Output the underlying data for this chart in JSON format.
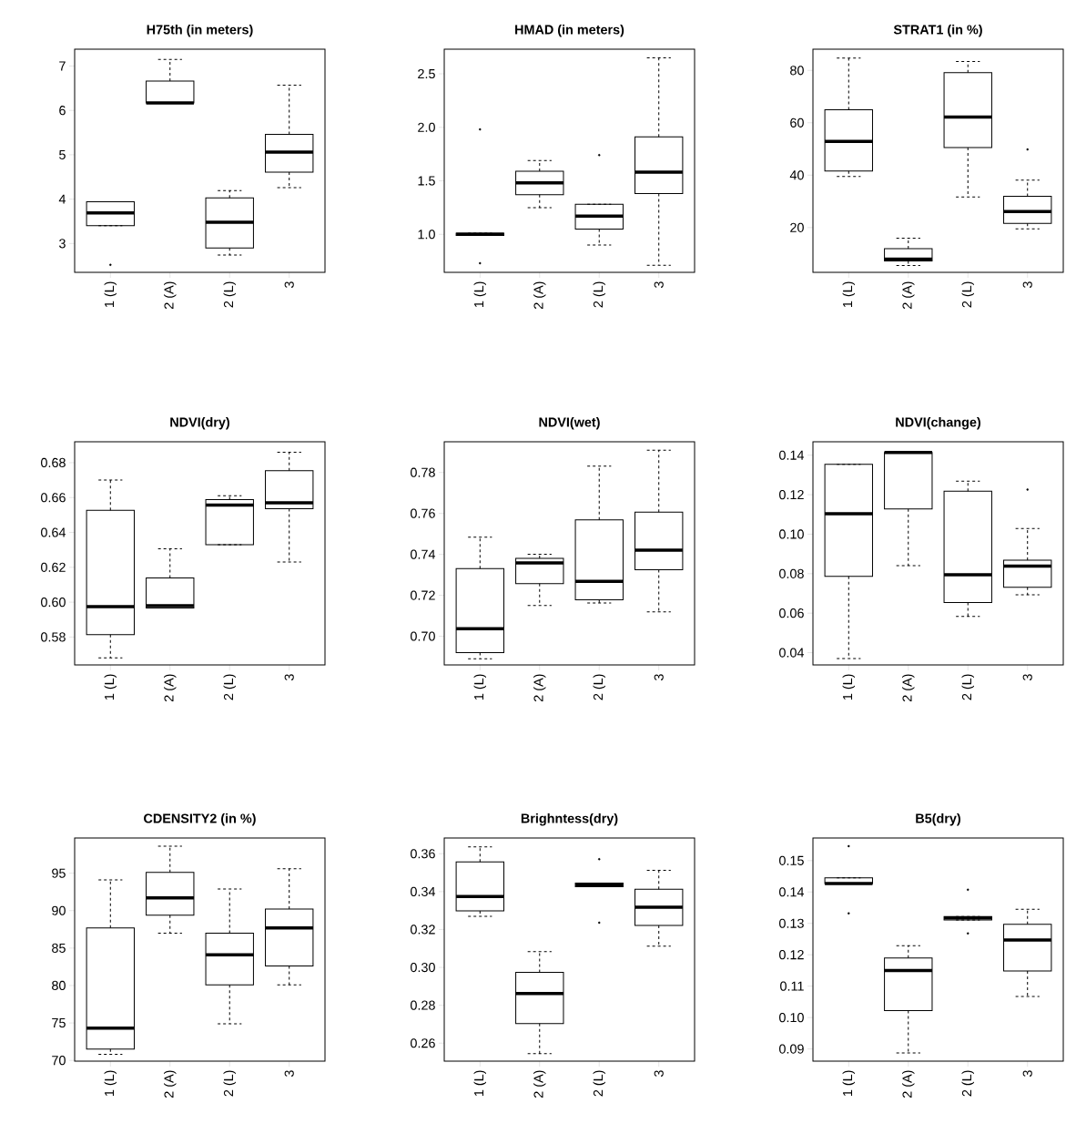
{
  "chart_data": [
    {
      "type": "box",
      "title": "H75th (in meters)",
      "categories": [
        "1 (L)",
        "2 (A)",
        "2 (L)",
        "3"
      ],
      "ylim": [
        2.35,
        7.38
      ],
      "yticks": [
        3,
        4,
        5,
        6,
        7
      ],
      "boxes": [
        {
          "low": 3.4,
          "q1": 3.4,
          "median": 3.69,
          "q3": 3.94,
          "high": 3.94,
          "outliers": [
            2.52
          ]
        },
        {
          "low": 6.17,
          "q1": 6.17,
          "median": 6.17,
          "q3": 6.66,
          "high": 7.15
        },
        {
          "low": 2.74,
          "q1": 2.9,
          "median": 3.48,
          "q3": 4.03,
          "high": 4.19
        },
        {
          "low": 4.26,
          "q1": 4.61,
          "median": 5.06,
          "q3": 5.46,
          "high": 6.57
        }
      ]
    },
    {
      "type": "box",
      "title": "HMAD (in meters)",
      "categories": [
        "1 (L)",
        "2 (A)",
        "2 (L)",
        "3"
      ],
      "ylim": [
        0.645,
        2.73
      ],
      "yticks": [
        {
          "value": 1.0,
          "label": "1.0"
        },
        {
          "value": 1.5,
          "label": "1.5"
        },
        {
          "value": 2.0,
          "label": "2.0"
        },
        {
          "value": 2.5,
          "label": "2.5"
        }
      ],
      "boxes": [
        {
          "low": 0.99,
          "q1": 0.99,
          "median": 1.0,
          "q3": 1.01,
          "high": 1.01,
          "outliers": [
            1.98,
            0.73
          ]
        },
        {
          "low": 1.25,
          "q1": 1.37,
          "median": 1.48,
          "q3": 1.59,
          "high": 1.69
        },
        {
          "low": 0.9,
          "q1": 1.05,
          "median": 1.17,
          "q3": 1.28,
          "high": 1.28,
          "outliers": [
            1.74
          ]
        },
        {
          "low": 0.71,
          "q1": 1.38,
          "median": 1.58,
          "q3": 1.91,
          "high": 2.65
        }
      ]
    },
    {
      "type": "box",
      "title": "STRAT1 (in %)",
      "categories": [
        "1 (L)",
        "2 (A)",
        "2 (L)",
        "3"
      ],
      "ylim": [
        2.9,
        88.1
      ],
      "yticks": [
        20,
        40,
        60,
        80
      ],
      "boxes": [
        {
          "low": 39.5,
          "q1": 41.6,
          "median": 52.9,
          "q3": 65.0,
          "high": 84.7
        },
        {
          "low": 5.5,
          "q1": 7.2,
          "median": 7.9,
          "q3": 11.9,
          "high": 15.9
        },
        {
          "low": 31.7,
          "q1": 50.5,
          "median": 62.2,
          "q3": 79.1,
          "high": 83.4
        },
        {
          "low": 19.5,
          "q1": 21.6,
          "median": 26.1,
          "q3": 31.9,
          "high": 38.1,
          "outliers": [
            49.8
          ]
        }
      ]
    },
    {
      "type": "box",
      "title": "NDVI(dry)",
      "categories": [
        "1 (L)",
        "2 (A)",
        "2 (L)",
        "3"
      ],
      "ylim": [
        0.564,
        0.692
      ],
      "yticks": [
        {
          "value": 0.58,
          "label": "0.58"
        },
        {
          "value": 0.6,
          "label": "0.60"
        },
        {
          "value": 0.62,
          "label": "0.62"
        },
        {
          "value": 0.64,
          "label": "0.64"
        },
        {
          "value": 0.66,
          "label": "0.66"
        },
        {
          "value": 0.68,
          "label": "0.68"
        }
      ],
      "boxes": [
        {
          "low": 0.568,
          "q1": 0.5814,
          "median": 0.5974,
          "q3": 0.6527,
          "high": 0.6701
        },
        {
          "low": 0.5967,
          "q1": 0.5967,
          "median": 0.598,
          "q3": 0.6139,
          "high": 0.6306
        },
        {
          "low": 0.633,
          "q1": 0.633,
          "median": 0.6557,
          "q3": 0.6588,
          "high": 0.661
        },
        {
          "low": 0.623,
          "q1": 0.6536,
          "median": 0.657,
          "q3": 0.6754,
          "high": 0.686
        }
      ]
    },
    {
      "type": "box",
      "title": "NDVI(wet)",
      "categories": [
        "1 (L)",
        "2 (A)",
        "2 (L)",
        "3"
      ],
      "ylim": [
        0.686,
        0.795
      ],
      "yticks": [
        {
          "value": 0.7,
          "label": "0.70"
        },
        {
          "value": 0.72,
          "label": "0.72"
        },
        {
          "value": 0.74,
          "label": "0.74"
        },
        {
          "value": 0.76,
          "label": "0.76"
        },
        {
          "value": 0.78,
          "label": "0.78"
        }
      ],
      "boxes": [
        {
          "low": 0.689,
          "q1": 0.692,
          "median": 0.7037,
          "q3": 0.733,
          "high": 0.7484
        },
        {
          "low": 0.715,
          "q1": 0.7257,
          "median": 0.7358,
          "q3": 0.738,
          "high": 0.74
        },
        {
          "low": 0.7163,
          "q1": 0.7178,
          "median": 0.7268,
          "q3": 0.7569,
          "high": 0.7831
        },
        {
          "low": 0.7119,
          "q1": 0.7325,
          "median": 0.742,
          "q3": 0.7606,
          "high": 0.7909
        }
      ]
    },
    {
      "type": "box",
      "title": "NDVI(change)",
      "categories": [
        "1 (L)",
        "2 (A)",
        "2 (L)",
        "3"
      ],
      "ylim": [
        0.0338,
        0.1468
      ],
      "yticks": [
        {
          "value": 0.04,
          "label": "0.04"
        },
        {
          "value": 0.06,
          "label": "0.06"
        },
        {
          "value": 0.08,
          "label": "0.08"
        },
        {
          "value": 0.1,
          "label": "0.10"
        },
        {
          "value": 0.12,
          "label": "0.12"
        },
        {
          "value": 0.14,
          "label": "0.14"
        }
      ],
      "boxes": [
        {
          "low": 0.037,
          "q1": 0.0786,
          "median": 0.1104,
          "q3": 0.1354,
          "high": 0.1354
        },
        {
          "low": 0.0841,
          "q1": 0.1128,
          "median": 0.1414,
          "q3": 0.1414,
          "high": 0.1414
        },
        {
          "low": 0.0583,
          "q1": 0.0654,
          "median": 0.0795,
          "q3": 0.1218,
          "high": 0.1268
        },
        {
          "low": 0.0693,
          "q1": 0.0731,
          "median": 0.0838,
          "q3": 0.0868,
          "high": 0.1029,
          "outliers": [
            0.1226
          ]
        }
      ]
    },
    {
      "type": "box",
      "title": "CDENSITY2 (in %)",
      "categories": [
        "1 (L)",
        "2 (A)",
        "2 (L)",
        "3"
      ],
      "ylim": [
        69.9,
        99.7
      ],
      "yticks": [
        70,
        75,
        80,
        85,
        90,
        95
      ],
      "boxes": [
        {
          "low": 70.8,
          "q1": 71.5,
          "median": 74.3,
          "q3": 87.7,
          "high": 94.1
        },
        {
          "low": 87.0,
          "q1": 89.4,
          "median": 91.7,
          "q3": 95.1,
          "high": 98.6
        },
        {
          "low": 74.9,
          "q1": 80.1,
          "median": 84.1,
          "q3": 87.0,
          "high": 92.9
        },
        {
          "low": 80.1,
          "q1": 82.6,
          "median": 87.7,
          "q3": 90.2,
          "high": 95.6
        }
      ]
    },
    {
      "type": "box",
      "title": "Brighntess(dry)",
      "categories": [
        "1 (L)",
        "2 (A)",
        "2 (L)",
        "3"
      ],
      "ylim": [
        0.2505,
        0.3683
      ],
      "yticks": [
        {
          "value": 0.26,
          "label": "0.26"
        },
        {
          "value": 0.28,
          "label": "0.28"
        },
        {
          "value": 0.3,
          "label": "0.30"
        },
        {
          "value": 0.32,
          "label": "0.32"
        },
        {
          "value": 0.34,
          "label": "0.34"
        },
        {
          "value": 0.36,
          "label": "0.36"
        }
      ],
      "boxes": [
        {
          "low": 0.3269,
          "q1": 0.3298,
          "median": 0.3374,
          "q3": 0.3557,
          "high": 0.3636
        },
        {
          "low": 0.2545,
          "q1": 0.2703,
          "median": 0.2862,
          "q3": 0.2974,
          "high": 0.3083
        },
        {
          "low": 0.3426,
          "q1": 0.3426,
          "median": 0.3436,
          "q3": 0.3445,
          "high": 0.3445,
          "outliers": [
            0.3571,
            0.3236
          ]
        },
        {
          "low": 0.3112,
          "q1": 0.3221,
          "median": 0.3317,
          "q3": 0.3412,
          "high": 0.3512
        }
      ]
    },
    {
      "type": "box",
      "title": "B5(dry)",
      "categories": [
        "1 (L)",
        "2 (A)",
        "2 (L)",
        "3"
      ],
      "ylim": [
        0.0861,
        0.1572
      ],
      "yticks": [
        {
          "value": 0.09,
          "label": "0.09"
        },
        {
          "value": 0.1,
          "label": "0.10"
        },
        {
          "value": 0.11,
          "label": "0.11"
        },
        {
          "value": 0.12,
          "label": "0.12"
        },
        {
          "value": 0.13,
          "label": "0.13"
        },
        {
          "value": 0.14,
          "label": "0.14"
        },
        {
          "value": 0.15,
          "label": "0.15"
        }
      ],
      "boxes": [
        {
          "low": 0.1427,
          "q1": 0.1427,
          "median": 0.1427,
          "q3": 0.1445,
          "high": 0.1445,
          "outliers": [
            0.1546,
            0.1332
          ]
        },
        {
          "low": 0.0887,
          "q1": 0.1022,
          "median": 0.115,
          "q3": 0.119,
          "high": 0.1229
        },
        {
          "low": 0.1311,
          "q1": 0.1311,
          "median": 0.1317,
          "q3": 0.1322,
          "high": 0.1322,
          "outliers": [
            0.1407,
            0.1268
          ]
        },
        {
          "low": 0.1067,
          "q1": 0.1148,
          "median": 0.1247,
          "q3": 0.1297,
          "high": 0.1345
        }
      ]
    }
  ]
}
